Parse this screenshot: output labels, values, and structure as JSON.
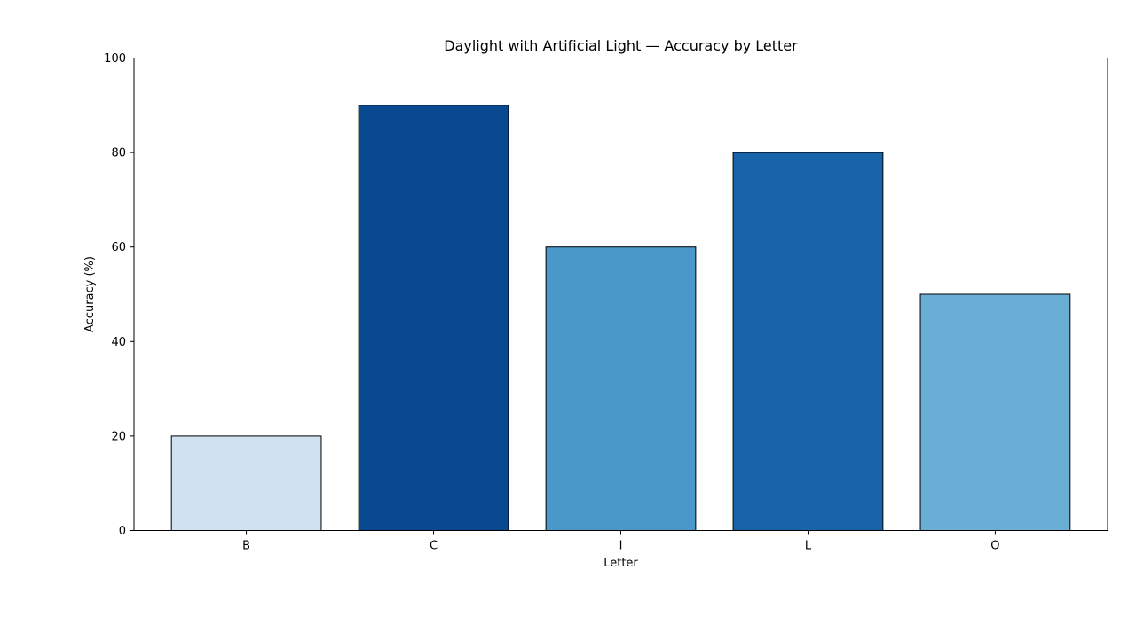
{
  "chart_data": {
    "type": "bar",
    "title": "Daylight with Artificial Light — Accuracy by Letter",
    "xlabel": "Letter",
    "ylabel": "Accuracy (%)",
    "categories": [
      "B",
      "C",
      "I",
      "L",
      "O"
    ],
    "values": [
      20,
      90,
      60,
      80,
      50
    ],
    "colors": [
      "#d0e1f2",
      "#084990",
      "#4a98c9",
      "#1764ab",
      "#6aaed6"
    ],
    "ylim": [
      0,
      100
    ],
    "yticks": [
      0,
      20,
      40,
      60,
      80,
      100
    ],
    "grid": false,
    "legend": "none"
  }
}
